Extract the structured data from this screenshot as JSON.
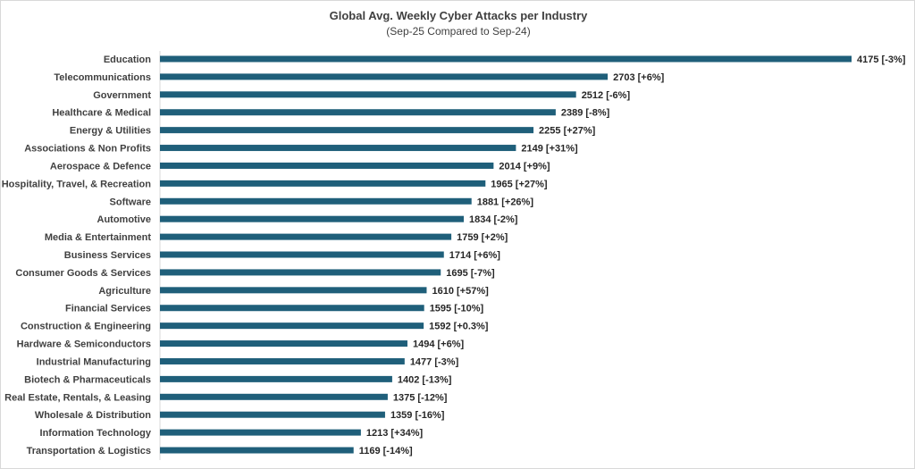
{
  "chart_data": {
    "type": "bar",
    "orientation": "horizontal",
    "title": "Global Avg. Weekly Cyber Attacks per Industry",
    "subtitle": "(Sep-25 Compared to Sep-24)",
    "bar_color": "#1f5f7a",
    "grid": false,
    "categories": [
      "Education",
      "Telecommunications",
      "Government",
      "Healthcare & Medical",
      "Energy & Utilities",
      "Associations & Non Profits",
      "Aerospace & Defence",
      "Hospitality, Travel, & Recreation",
      "Software",
      "Automotive",
      "Media & Entertainment",
      "Business Services",
      "Consumer Goods & Services",
      "Agriculture",
      "Financial Services",
      "Construction & Engineering",
      "Hardware & Semiconductors",
      "Industrial Manufacturing",
      "Biotech & Pharmaceuticals",
      "Real Estate, Rentals, & Leasing",
      "Wholesale & Distribution",
      "Information Technology",
      "Transportation & Logistics"
    ],
    "values": [
      4175,
      2703,
      2512,
      2389,
      2255,
      2149,
      2014,
      1965,
      1881,
      1834,
      1759,
      1714,
      1695,
      1610,
      1595,
      1592,
      1494,
      1477,
      1402,
      1375,
      1359,
      1213,
      1169
    ],
    "data_labels": [
      "4175 [-3%]",
      "2703 [+6%]",
      "2512 [-6%]",
      "2389 [-8%]",
      "2255 [+27%]",
      "2149 [+31%]",
      "2014 [+9%]",
      "1965 [+27%]",
      "1881 [+26%]",
      "1834 [-2%]",
      "1759 [+2%]",
      "1714 [+6%]",
      "1695 [-7%]",
      "1610 [+57%]",
      "1595 [-10%]",
      "1592 [+0.3%]",
      "1494 [+6%]",
      "1477 [-3%]",
      "1402 [-13%]",
      "1375 [-12%]",
      "1359 [-16%]",
      "1213 [+34%]",
      "1169 [-14%]"
    ],
    "xlim": [
      0,
      4175
    ]
  }
}
